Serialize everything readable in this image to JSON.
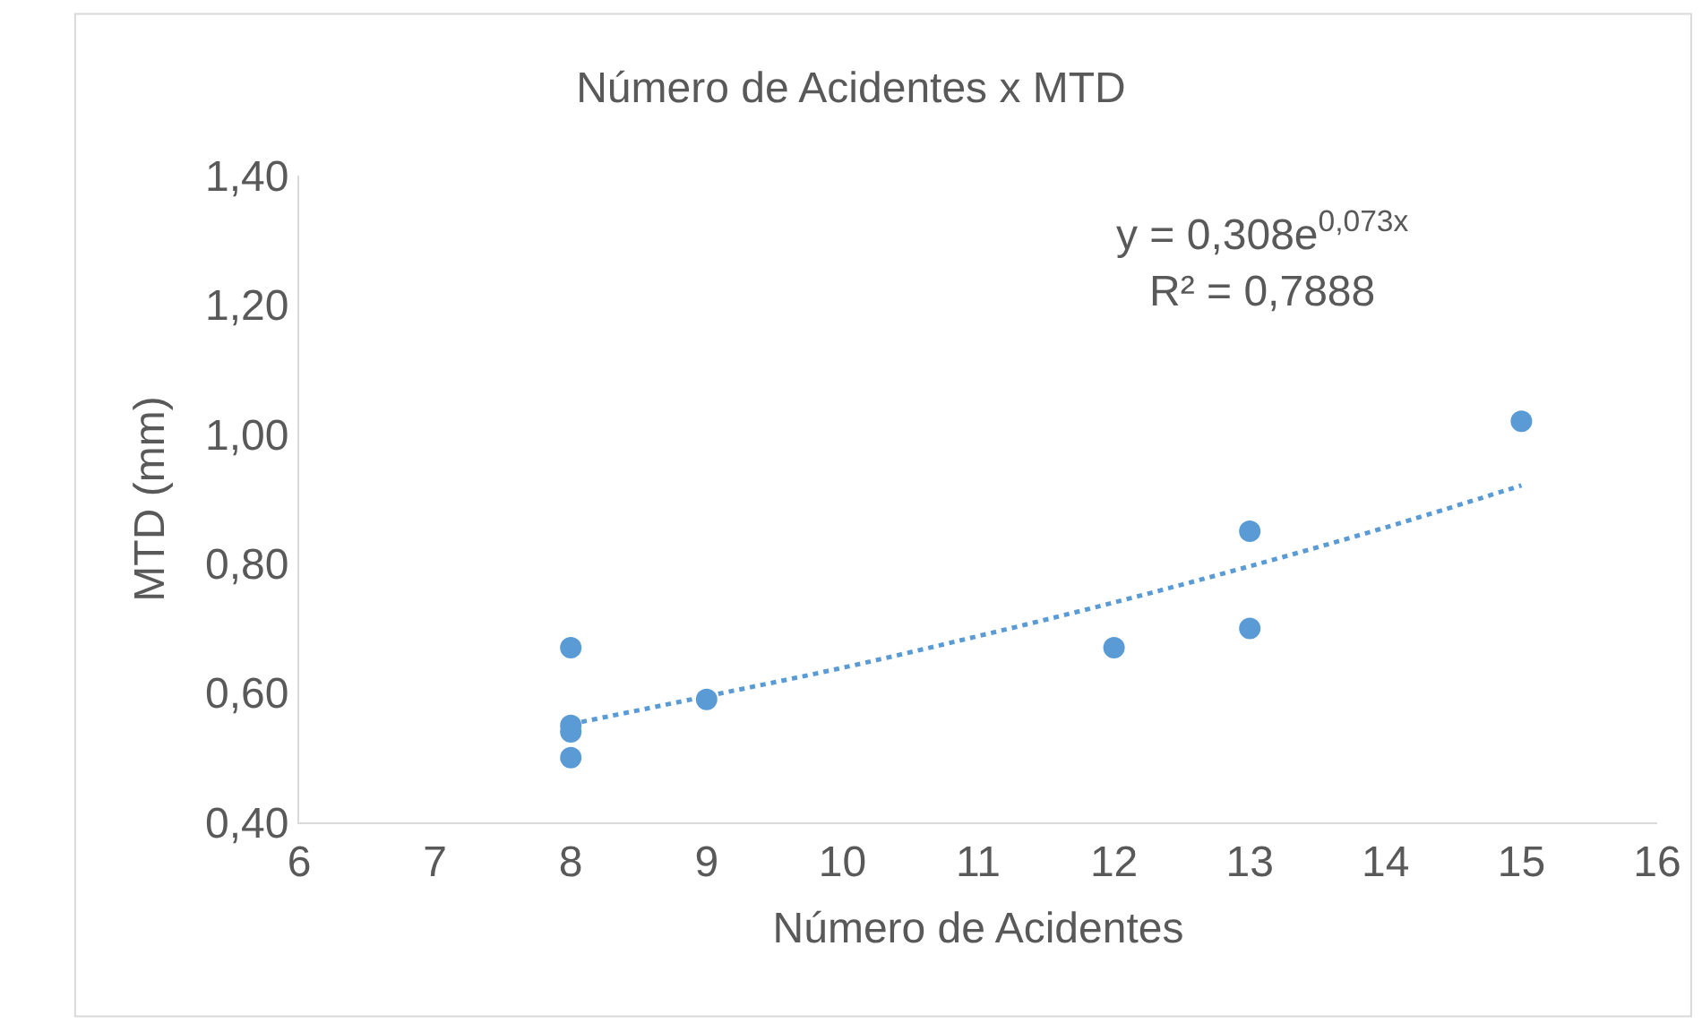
{
  "chart_data": {
    "type": "scatter",
    "title": "Número de Acidentes x MTD",
    "xlabel": "Número de Acidentes",
    "ylabel": "MTD (mm)",
    "series": [
      {
        "color": "#5b9bd5",
        "marker": "circle",
        "x": [
          8,
          8,
          8,
          8,
          9,
          12,
          13,
          13,
          15
        ],
        "values": [
          0.67,
          0.55,
          0.54,
          0.5,
          0.59,
          0.67,
          0.85,
          0.7,
          1.02
        ]
      },
      {
        "type": "line",
        "color": "#5b9bd5",
        "line_style": "dotted",
        "marker": "none",
        "x": [
          8,
          9,
          10,
          11,
          12,
          13,
          14,
          15
        ],
        "values": [
          0.552,
          0.595,
          0.639,
          0.688,
          0.74,
          0.796,
          0.856,
          0.921
        ]
      }
    ],
    "xlim": [
      6,
      16
    ],
    "xticks": [
      6,
      7,
      8,
      9,
      10,
      11,
      12,
      13,
      14,
      15,
      16
    ],
    "ylim": [
      0.4,
      1.4
    ],
    "yticks": [
      {
        "value": 0.4,
        "label": "0,40"
      },
      {
        "value": 0.6,
        "label": "0,60"
      },
      {
        "value": 0.8,
        "label": "0,80"
      },
      {
        "value": 1.0,
        "label": "1,00"
      },
      {
        "value": 1.2,
        "label": "1,20"
      },
      {
        "value": 1.4,
        "label": "1,40"
      }
    ],
    "annotations": [
      "y = 0,308e$^{0,073x}$\nR² = 0,7888"
    ]
  }
}
